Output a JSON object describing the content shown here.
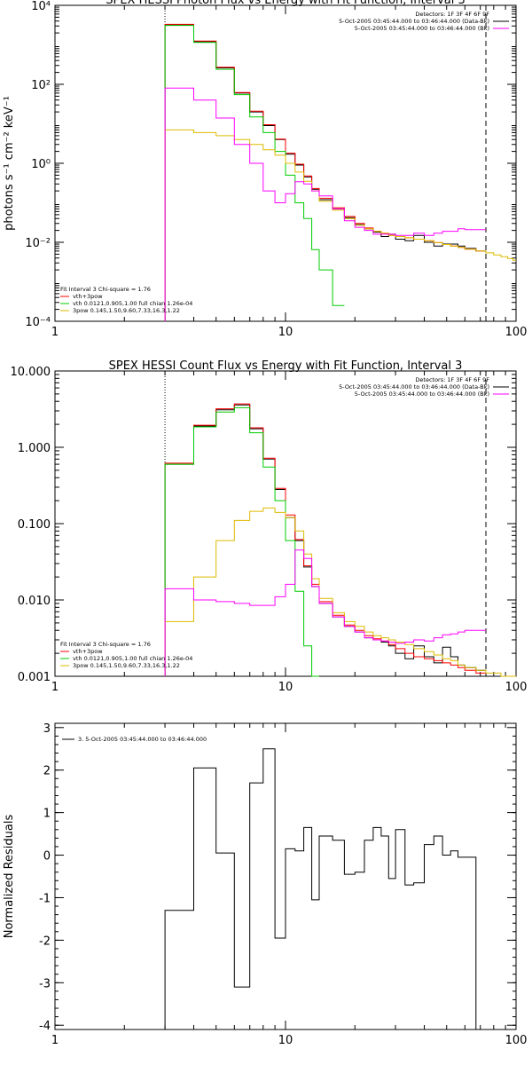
{
  "chart_data": [
    {
      "type": "line",
      "title": "SPEX HESSI Photon Flux vs Energy with Fit Function, Interval 3",
      "ylabel": "photons s⁻¹ cm⁻² keV⁻¹",
      "xscale": "log",
      "yscale": "log",
      "xlim": [
        1,
        100
      ],
      "ylim": [
        0.0001,
        10000
      ],
      "x_ticks": [
        "1",
        "10",
        "100"
      ],
      "y_ticks": [
        "10⁻⁴",
        "10⁻²",
        "10⁰",
        "10²",
        "10⁴"
      ],
      "vlines": [
        {
          "x": 3.0,
          "style": "dotted"
        },
        {
          "x": 74,
          "style": "dashed"
        }
      ],
      "legend_topright": [
        {
          "text": "Detectors: 1F 3F 4F 6F 9F",
          "color": ""
        },
        {
          "text": "5-Oct-2005 03:45:44.000 to 03:46:44.000 (Data-Bk)",
          "color": "#000000"
        },
        {
          "text": "5-Oct-2005 03:45:44.000 to 03:46:44.000 (Bk)",
          "color": "#ff00ff"
        }
      ],
      "legend_bottomleft": [
        {
          "text": "Fit Interval 3   Chi-square = 1.76",
          "color": ""
        },
        {
          "text": "vth+3pow",
          "color": "#ff0000"
        },
        {
          "text": "vth 0.0121,0.905,1.00  full chian 1.26e-04",
          "color": "#00cc00"
        },
        {
          "text": "3pow 0.145,1.50,9.60,7.33,16.3,1.22",
          "color": "#ddbb00"
        }
      ],
      "bin_edges": [
        3.0,
        4.0,
        5.0,
        6.0,
        7.0,
        8.0,
        9.0,
        10.0,
        11.0,
        12.0,
        13.0,
        14.0,
        16.0,
        18.0,
        20.0,
        22.0,
        24.0,
        26.0,
        28.0,
        30.0,
        33.0,
        36.0,
        40.0,
        44.0,
        48.0,
        52.0,
        56.0,
        60.0,
        67.0,
        74.0
      ],
      "series": [
        {
          "name": "Data-Bk",
          "color": "#000000",
          "values": [
            3200,
            1200,
            260,
            60,
            20,
            9,
            4,
            1.7,
            0.9,
            0.45,
            0.22,
            0.12,
            0.07,
            0.042,
            0.028,
            0.022,
            0.018,
            0.014,
            0.016,
            0.012,
            0.011,
            0.015,
            0.01,
            0.008,
            0.009,
            0.009,
            0.008,
            0.007,
            0.006
          ]
        },
        {
          "name": "vth+3pow",
          "color": "#ff0000",
          "values": [
            3300,
            1250,
            270,
            62,
            21,
            9.5,
            4.1,
            1.8,
            0.95,
            0.48,
            0.23,
            0.13,
            0.075,
            0.045,
            0.03,
            0.023,
            0.019,
            0.017,
            0.015,
            0.014,
            0.013,
            0.012,
            0.011,
            0.0098,
            0.0088,
            0.008,
            0.0074,
            0.0067,
            0.006
          ]
        },
        {
          "name": "vth",
          "color": "#00cc00",
          "values": [
            3100,
            1150,
            240,
            55,
            15,
            6,
            2,
            0.5,
            0.1,
            0.04,
            0.0065,
            0.002,
            0.00025
          ]
        },
        {
          "name": "3pow",
          "color": "#ddbb00",
          "values": [
            7,
            6,
            5,
            4,
            3,
            2.2,
            1.6,
            1.0,
            0.6,
            0.35,
            0.2,
            0.11,
            0.065,
            0.04,
            0.027,
            0.022,
            0.019,
            0.017,
            0.015,
            0.014,
            0.013,
            0.012,
            0.011,
            0.0098,
            0.0088,
            0.008,
            0.0074,
            0.0067,
            0.006,
            0.0054,
            0.0048,
            0.0043,
            0.0039,
            0.0035
          ],
          "bin_edges": [
            3.0,
            4.0,
            5.0,
            6.0,
            7.0,
            8.0,
            9.0,
            10.0,
            11.0,
            12.0,
            13.0,
            14.0,
            16.0,
            18.0,
            20.0,
            22.0,
            24.0,
            26.0,
            28.0,
            30.0,
            33.0,
            36.0,
            40.0,
            44.0,
            48.0,
            52.0,
            56.0,
            60.0,
            67.0,
            74.0,
            80.0,
            86.0,
            92.0,
            97.0,
            100.0
          ]
        },
        {
          "name": "Bk",
          "color": "#ff00ff",
          "values": [
            80,
            40,
            14,
            3,
            1,
            0.2,
            0.1,
            0.17,
            0.34,
            0.3,
            0.2,
            0.15,
            0.07,
            0.035,
            0.024,
            0.02,
            0.016,
            0.016,
            0.016,
            0.015,
            0.015,
            0.017,
            0.015,
            0.017,
            0.019,
            0.019,
            0.022,
            0.021,
            0.021
          ]
        }
      ]
    },
    {
      "type": "line",
      "title": "SPEX HESSI Count Flux vs Energy with Fit Function, Interval 3",
      "ylabel": "",
      "xscale": "log",
      "yscale": "log",
      "xlim": [
        1,
        100
      ],
      "ylim": [
        0.001,
        10
      ],
      "x_ticks": [
        "1",
        "10",
        "100"
      ],
      "y_ticks": [
        "0.001",
        "0.010",
        "0.100",
        "1.000",
        "10.000"
      ],
      "vlines": [
        {
          "x": 3.0,
          "style": "dotted"
        },
        {
          "x": 74,
          "style": "dashed"
        }
      ],
      "legend_topright": [
        {
          "text": "Detectors: 1F 3F 4F 6F 9F",
          "color": ""
        },
        {
          "text": "5-Oct-2005 03:45:44.000 to 03:46:44.000 (Data-Bk)",
          "color": "#000000"
        },
        {
          "text": "5-Oct-2005 03:45:44.000 to 03:46:44.000 (Bk)",
          "color": "#ff00ff"
        }
      ],
      "legend_bottomleft": [
        {
          "text": "Fit Interval 3   Chi-square = 1.76",
          "color": ""
        },
        {
          "text": "vth+3pow",
          "color": "#ff0000"
        },
        {
          "text": "vth 0.0121,0.905,1.00  full chian 1.26e-04",
          "color": "#00cc00"
        },
        {
          "text": "3pow 0.145,1.50,9.60,7.33,16.3,1.22",
          "color": "#ddbb00"
        }
      ],
      "bin_edges": [
        3.0,
        4.0,
        5.0,
        6.0,
        7.0,
        8.0,
        9.0,
        10.0,
        11.0,
        12.0,
        13.0,
        14.0,
        16.0,
        18.0,
        20.0,
        22.0,
        24.0,
        26.0,
        28.0,
        30.0,
        33.0,
        36.0,
        40.0,
        44.0,
        48.0,
        52.0,
        56.0,
        60.0,
        67.0,
        74.0
      ],
      "series": [
        {
          "name": "Data-Bk",
          "color": "#000000",
          "values": [
            0.6,
            1.9,
            3.1,
            3.6,
            1.75,
            0.7,
            0.28,
            0.12,
            0.06,
            0.027,
            0.015,
            0.009,
            0.006,
            0.0045,
            0.0038,
            0.0032,
            0.003,
            0.0028,
            0.0025,
            0.002,
            0.0017,
            0.0025,
            0.0018,
            0.0015,
            0.0024,
            0.0018,
            0.0014,
            0.0013,
            0.0012
          ]
        },
        {
          "name": "vth+3pow",
          "color": "#ff0000",
          "values": [
            0.62,
            1.95,
            3.2,
            3.7,
            1.8,
            0.72,
            0.29,
            0.13,
            0.062,
            0.028,
            0.016,
            0.0095,
            0.0063,
            0.0047,
            0.004,
            0.0034,
            0.0031,
            0.0029,
            0.0026,
            0.0023,
            0.002,
            0.0018,
            0.0017,
            0.0016,
            0.0015,
            0.0014,
            0.0013,
            0.0012,
            0.0011
          ]
        },
        {
          "name": "vth",
          "color": "#00cc00",
          "values": [
            0.6,
            1.85,
            2.9,
            3.3,
            1.55,
            0.55,
            0.2,
            0.06,
            0.013,
            0.0025,
            0.0008
          ]
        },
        {
          "name": "3pow",
          "color": "#ddbb00",
          "values": [
            0.0052,
            0.02,
            0.06,
            0.11,
            0.145,
            0.16,
            0.14,
            0.12,
            0.08,
            0.04,
            0.019,
            0.0105,
            0.0068,
            0.0052,
            0.0045,
            0.0038,
            0.0034,
            0.0032,
            0.003,
            0.0028,
            0.0026,
            0.0023,
            0.0021,
            0.0019,
            0.0017,
            0.0016,
            0.0014,
            0.0013,
            0.0012,
            0.0011,
            0.001
          ],
          "bin_edges": [
            3.0,
            4.0,
            5.0,
            6.0,
            7.0,
            8.0,
            9.0,
            10.0,
            11.0,
            12.0,
            13.0,
            14.0,
            16.0,
            18.0,
            20.0,
            22.0,
            24.0,
            26.0,
            28.0,
            30.0,
            33.0,
            36.0,
            40.0,
            44.0,
            48.0,
            52.0,
            56.0,
            60.0,
            67.0,
            74.0,
            86.0,
            100.0
          ]
        },
        {
          "name": "Bk",
          "color": "#ff00ff",
          "values": [
            0.014,
            0.01,
            0.0095,
            0.009,
            0.0085,
            0.0085,
            0.011,
            0.016,
            0.045,
            0.035,
            0.015,
            0.009,
            0.006,
            0.0045,
            0.0038,
            0.0032,
            0.003,
            0.0029,
            0.0028,
            0.0027,
            0.0028,
            0.003,
            0.0029,
            0.0032,
            0.0035,
            0.0036,
            0.0038,
            0.004,
            0.004
          ]
        }
      ]
    },
    {
      "type": "line",
      "title": "",
      "ylabel": "Normalized Residuals",
      "xscale": "log",
      "yscale": "linear",
      "xlim": [
        1,
        100
      ],
      "ylim": [
        -4.1,
        3.1
      ],
      "x_ticks": [
        "1",
        "10",
        "100"
      ],
      "y_ticks": [
        "-4",
        "-3",
        "-2",
        "-1",
        "0",
        "1",
        "2",
        "3"
      ],
      "legend_topleft": [
        {
          "text": "3.  5-Oct-2005 03:45:44.000 to 03:46:44.000",
          "color": "#000000"
        }
      ],
      "bin_edges": [
        3.0,
        3.5,
        4.0,
        5.0,
        6.0,
        7.0,
        8.0,
        9.0,
        10.0,
        11.0,
        12.0,
        13.0,
        14.0,
        16.0,
        18.0,
        20.0,
        22.0,
        24.0,
        26.0,
        28.0,
        30.0,
        33.0,
        36.0,
        40.0,
        44.0,
        48.0,
        52.0,
        56.0,
        60.0,
        67.0,
        74.0
      ],
      "series": [
        {
          "name": "3.",
          "color": "#000000",
          "values": [
            -1.3,
            -1.3,
            2.05,
            0.05,
            -3.1,
            1.7,
            2.5,
            -1.95,
            0.15,
            0.1,
            0.65,
            -1.05,
            0.45,
            0.35,
            -0.45,
            -0.4,
            0.35,
            0.65,
            0.45,
            -0.55,
            0.6,
            -0.7,
            -0.65,
            0.25,
            0.45,
            0.0,
            0.1,
            -0.05,
            -0.05,
            -4.1
          ]
        }
      ]
    }
  ]
}
